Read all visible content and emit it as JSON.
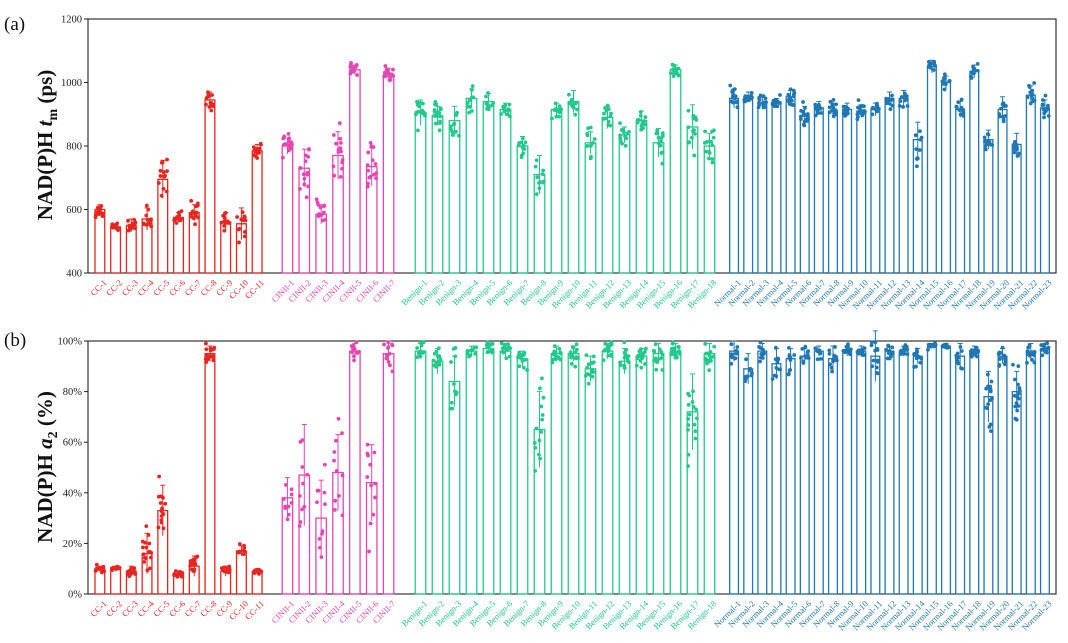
{
  "figure": {
    "groups": [
      {
        "name": "CC",
        "color": "#e8251f"
      },
      {
        "name": "CINII",
        "color": "#e646b4"
      },
      {
        "name": "Benign",
        "color": "#21c98c"
      },
      {
        "name": "Normal",
        "color": "#1f77b4"
      }
    ]
  },
  "chart_data": [
    {
      "type": "bar",
      "panel_label": "(a)",
      "title": "",
      "xlabel": "",
      "ylabel_prefix": "NAD(P)H ",
      "ylabel_var": "t",
      "ylabel_sub": "m",
      "ylabel_suffix": " (ps)",
      "ylim": [
        400,
        1200
      ],
      "yticks": [
        "400",
        "600",
        "800",
        "1000",
        "1200"
      ],
      "ytick_values": [
        400,
        600,
        800,
        1000,
        1200
      ],
      "categories": [
        "CC-1",
        "CC-2",
        "CC-3",
        "CC-4",
        "CC-5",
        "CC-6",
        "CC-7",
        "CC-8",
        "CC-9",
        "CC-10",
        "CC-11",
        "CINII-1",
        "CINII-2",
        "CINII-3",
        "CINII-4",
        "CINII-5",
        "CINII-6",
        "CINII-7",
        "Benign-1",
        "Benign-2",
        "Benign-3",
        "Benign-4",
        "Benign-5",
        "Benign-6",
        "Benign-7",
        "Benign-8",
        "Benign-9",
        "Benign-10",
        "Benign-11",
        "Benign-12",
        "Benign-13",
        "Benign-14",
        "Benign-15",
        "Benign-16",
        "Benign-17",
        "Benign-18",
        "Normal-1",
        "Normal-2",
        "Normal-3",
        "Normal-4",
        "Normal-5",
        "Normal-6",
        "Normal-7",
        "Normal-8",
        "Normal-9",
        "Normal-10",
        "Normal-11",
        "Normal-12",
        "Normal-13",
        "Normal-14",
        "Normal-15",
        "Normal-16",
        "Normal-17",
        "Normal-18",
        "Normal-19",
        "Normal-20",
        "Normal-21",
        "Normal-22",
        "Normal-23"
      ],
      "values": [
        600,
        545,
        550,
        570,
        695,
        575,
        590,
        945,
        560,
        555,
        785,
        800,
        730,
        585,
        770,
        1040,
        735,
        1025,
        905,
        895,
        880,
        950,
        940,
        915,
        800,
        710,
        915,
        940,
        810,
        890,
        835,
        880,
        810,
        1040,
        860,
        800,
        950,
        955,
        935,
        935,
        955,
        895,
        920,
        910,
        915,
        910,
        915,
        950,
        950,
        820,
        1050,
        1000,
        915,
        1035,
        820,
        915,
        805,
        960,
        920
      ],
      "errors": [
        15,
        10,
        20,
        35,
        60,
        15,
        25,
        25,
        30,
        50,
        20,
        25,
        60,
        30,
        75,
        15,
        60,
        20,
        40,
        30,
        45,
        30,
        25,
        20,
        30,
        60,
        20,
        35,
        35,
        35,
        25,
        30,
        45,
        15,
        70,
        40,
        30,
        15,
        20,
        15,
        20,
        30,
        20,
        20,
        20,
        20,
        20,
        20,
        25,
        55,
        20,
        20,
        25,
        20,
        30,
        40,
        35,
        30,
        25
      ],
      "group": [
        0,
        0,
        0,
        0,
        0,
        0,
        0,
        0,
        0,
        0,
        0,
        1,
        1,
        1,
        1,
        1,
        1,
        1,
        2,
        2,
        2,
        2,
        2,
        2,
        2,
        2,
        2,
        2,
        2,
        2,
        2,
        2,
        2,
        2,
        2,
        2,
        3,
        3,
        3,
        3,
        3,
        3,
        3,
        3,
        3,
        3,
        3,
        3,
        3,
        3,
        3,
        3,
        3,
        3,
        3,
        3,
        3,
        3,
        3
      ]
    },
    {
      "type": "bar",
      "panel_label": "(b)",
      "title": "",
      "xlabel": "",
      "ylabel_prefix": "NAD(P)H ",
      "ylabel_var": "a",
      "ylabel_sub": "2",
      "ylabel_suffix": " (%)",
      "ylim": [
        0,
        100
      ],
      "yticks": [
        "0%",
        "20%",
        "40%",
        "60%",
        "80%",
        "100%"
      ],
      "ytick_values": [
        0,
        20,
        40,
        60,
        80,
        100
      ],
      "categories": [
        "CC-1",
        "CC-2",
        "CC-3",
        "CC-4",
        "CC-5",
        "CC-6",
        "CC-7",
        "CC-8",
        "CC-9",
        "CC-10",
        "CC-11",
        "CINII-1",
        "CINII-2",
        "CINII-3",
        "CINII-4",
        "CINII-5",
        "CINII-6",
        "CINII-7",
        "Benign-1",
        "Benign-2",
        "Benign-3",
        "Benign-4",
        "Benign-5",
        "Benign-6",
        "Benign-7",
        "Benign-8",
        "Benign-9",
        "Benign-10",
        "Benign-11",
        "Benign-12",
        "Benign-13",
        "Benign-14",
        "Benign-15",
        "Benign-16",
        "Benign-17",
        "Benign-18",
        "Normal-1",
        "Normal-2",
        "Normal-3",
        "Normal-4",
        "Normal-5",
        "Normal-6",
        "Normal-7",
        "Normal-8",
        "Normal-9",
        "Normal-10",
        "Normal-11",
        "Normal-12",
        "Normal-13",
        "Normal-14",
        "Normal-15",
        "Normal-16",
        "Normal-17",
        "Normal-18",
        "Normal-19",
        "Normal-20",
        "Normal-21",
        "Normal-22",
        "Normal-23"
      ],
      "values": [
        10,
        10,
        9,
        16,
        33,
        8,
        11,
        95,
        9,
        17,
        9,
        38,
        47,
        30,
        48,
        96,
        44,
        95,
        96,
        92,
        84,
        96,
        97,
        96,
        93,
        65,
        95,
        95,
        89,
        96,
        92,
        94,
        95,
        96,
        72,
        95,
        96,
        89,
        96,
        91,
        93,
        94,
        96,
        93,
        96,
        96,
        94,
        96,
        96,
        94,
        98,
        98,
        94,
        96,
        78,
        94,
        80,
        96,
        97
      ],
      "errors": [
        1,
        1,
        2,
        8,
        10,
        1,
        4,
        3,
        2,
        2,
        1,
        8,
        20,
        15,
        15,
        3,
        15,
        5,
        3,
        5,
        10,
        2,
        2,
        3,
        3,
        15,
        3,
        3,
        5,
        3,
        5,
        3,
        4,
        3,
        15,
        4,
        4,
        6,
        3,
        6,
        4,
        3,
        2,
        5,
        2,
        2,
        10,
        2,
        2,
        3,
        1,
        1,
        5,
        2,
        10,
        3,
        8,
        3,
        2
      ],
      "group": [
        0,
        0,
        0,
        0,
        0,
        0,
        0,
        0,
        0,
        0,
        0,
        1,
        1,
        1,
        1,
        1,
        1,
        1,
        2,
        2,
        2,
        2,
        2,
        2,
        2,
        2,
        2,
        2,
        2,
        2,
        2,
        2,
        2,
        2,
        2,
        2,
        3,
        3,
        3,
        3,
        3,
        3,
        3,
        3,
        3,
        3,
        3,
        3,
        3,
        3,
        3,
        3,
        3,
        3,
        3,
        3,
        3,
        3,
        3
      ]
    }
  ]
}
